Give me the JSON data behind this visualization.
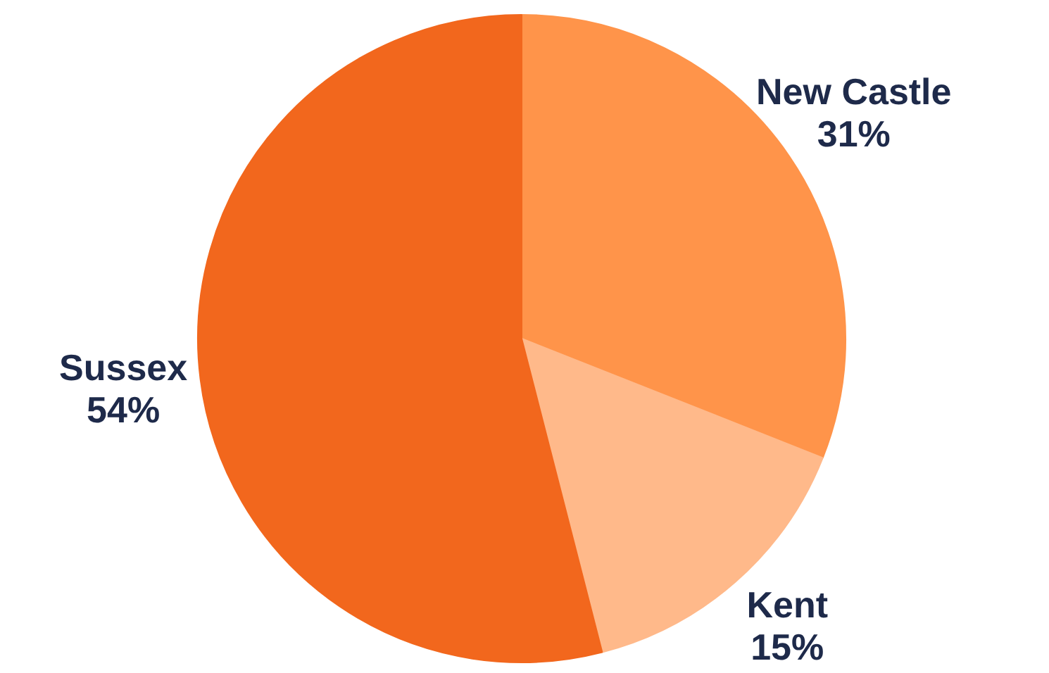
{
  "chart_data": {
    "type": "pie",
    "categories": [
      "New Castle",
      "Kent",
      "Sussex"
    ],
    "values": [
      31,
      15,
      54
    ],
    "colors": [
      "#ff944a",
      "#ffb98a",
      "#f2671d"
    ],
    "value_labels": [
      "31%",
      "15%",
      "54%"
    ],
    "legend": false
  }
}
